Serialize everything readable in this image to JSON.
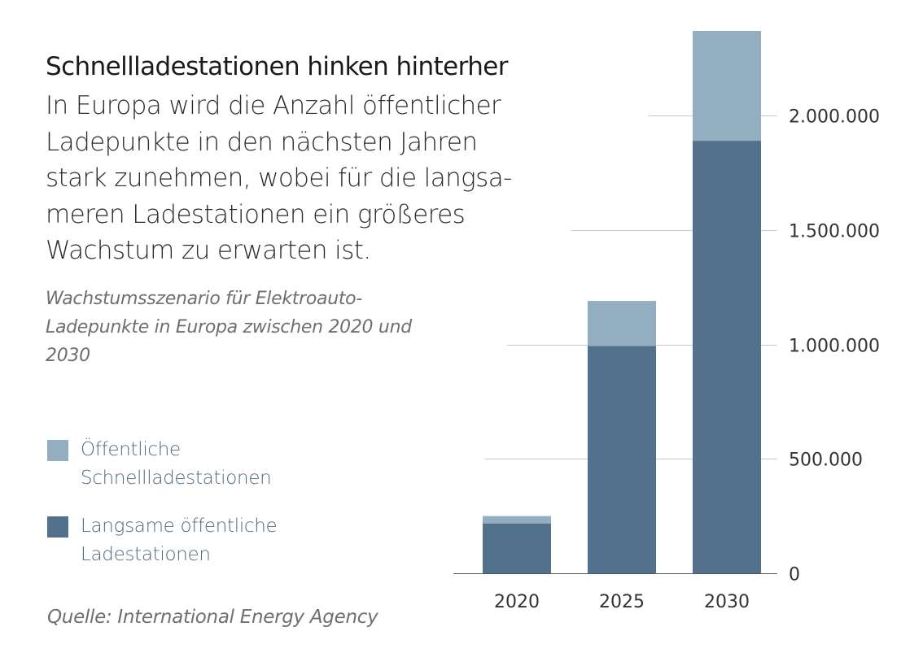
{
  "title": "Schnellladestationen hinken hinterher",
  "subtitle": "In Europa wird die Anzahl öffentlicher Ladepunkte in den nächsten Jahren stark zunehmen, wobei für die langsa-meren Ladestationen ein größeres Wachstum zu erwarten ist.",
  "description": "Wachstumsszenario für Elektroauto-Ladepunkte in Europa zwischen 2020 und 2030",
  "source": "Quelle: International Energy Agency",
  "legend": [
    {
      "line1": "Öffentliche",
      "line2": "Schnellladestationen",
      "color": "#93adc1"
    },
    {
      "line1": "Langsame öffentliche",
      "line2": "Ladestationen",
      "color": "#52718c"
    }
  ],
  "chart_data": {
    "type": "bar",
    "stacked": true,
    "categories": [
      "2020",
      "2025",
      "2030"
    ],
    "series": [
      {
        "name": "Langsame öffentliche Ladestationen",
        "values": [
          218000,
          993000,
          1890000
        ],
        "color": "#52718c"
      },
      {
        "name": "Öffentliche Schnellladestationen",
        "values": [
          32000,
          197000,
          480000
        ],
        "color": "#93adc1"
      }
    ],
    "yticks": [
      0,
      500000,
      1000000,
      1500000,
      2000000
    ],
    "ytick_labels": [
      "0",
      "500.000",
      "1.000.000",
      "1.500.000",
      "2.000.000"
    ],
    "ylim": [
      0,
      2370000
    ],
    "y_axis_position": "right",
    "grid": true
  }
}
